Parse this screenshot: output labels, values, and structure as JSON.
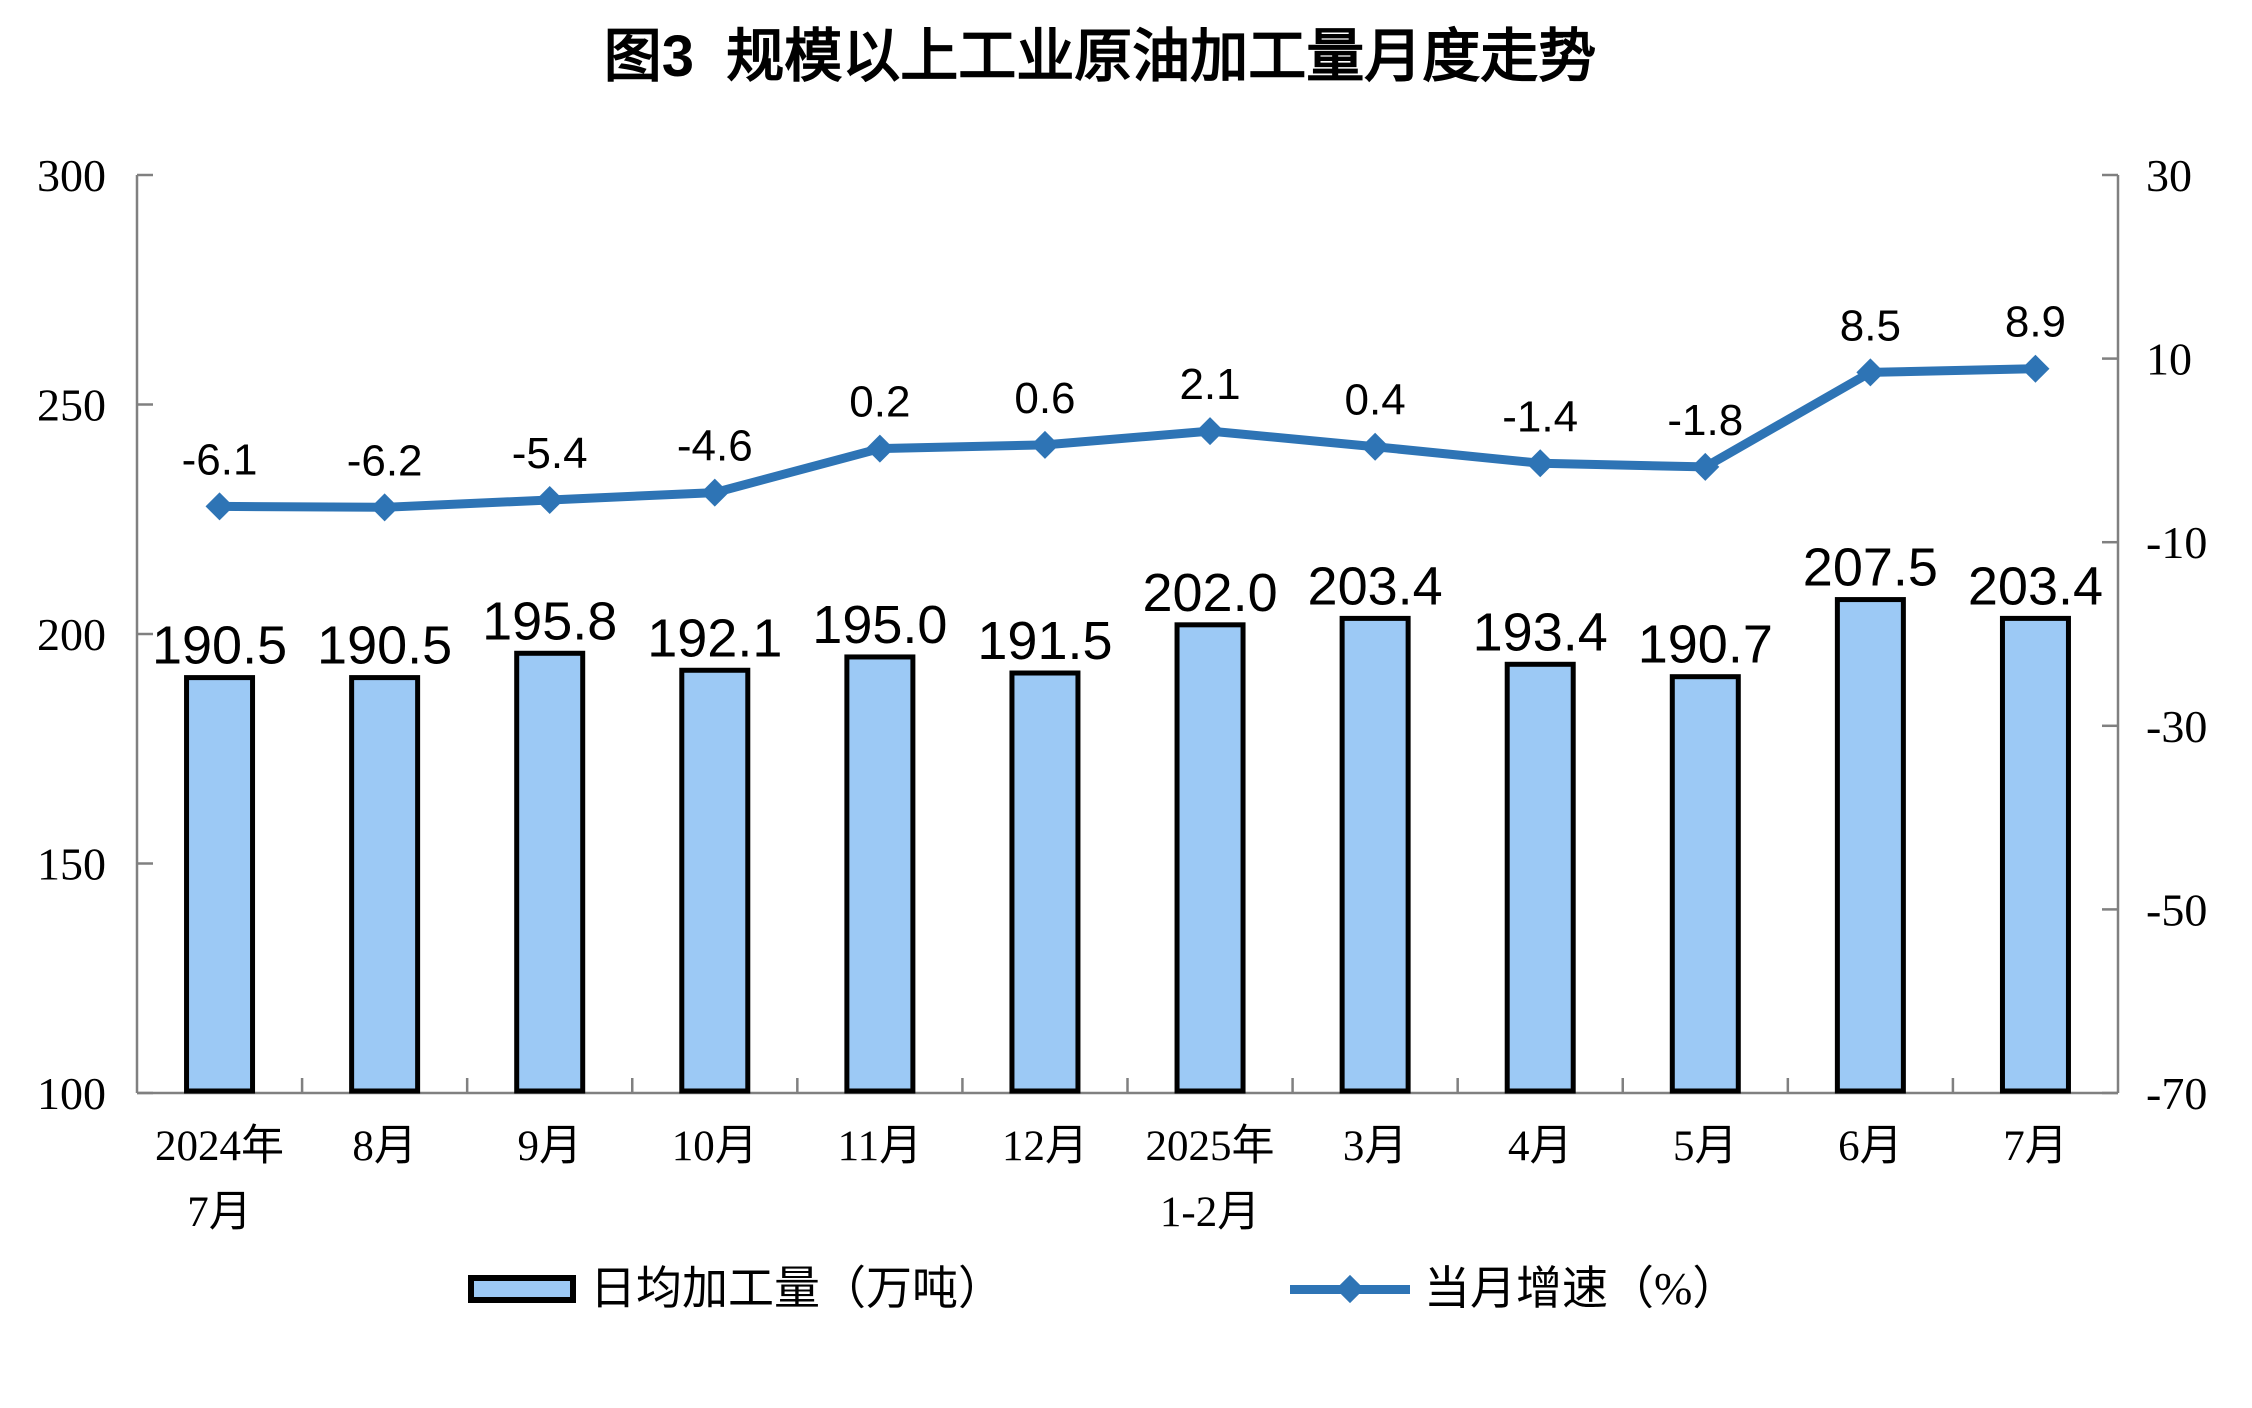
{
  "title": "图3  规模以上工业原油加工量月度走势",
  "chart_data": {
    "type": "bar+line combo",
    "categories": [
      "2024年\n7月",
      "8月",
      "9月",
      "10月",
      "11月",
      "12月",
      "2025年\n1-2月",
      "3月",
      "4月",
      "5月",
      "6月",
      "7月"
    ],
    "series": [
      {
        "name": "日均加工量（万吨）",
        "type": "bar",
        "axis": "left",
        "values": [
          190.5,
          190.5,
          195.8,
          192.1,
          195.0,
          191.5,
          202.0,
          203.4,
          193.4,
          190.7,
          207.5,
          203.4
        ]
      },
      {
        "name": "当月增速（%）",
        "type": "line",
        "axis": "right",
        "values": [
          -6.1,
          -6.2,
          -5.4,
          -4.6,
          0.2,
          0.6,
          2.1,
          0.4,
          -1.4,
          -1.8,
          8.5,
          8.9
        ]
      }
    ],
    "left_axis": {
      "min": 100,
      "max": 300,
      "ticks": [
        300,
        250,
        200,
        150,
        100
      ]
    },
    "right_axis": {
      "min": -70,
      "max": 30,
      "ticks": [
        30,
        10,
        -10,
        -30,
        -50,
        -70
      ]
    },
    "grid": false,
    "legend_position": "bottom",
    "data_labels": true
  },
  "legend": {
    "bar_label": "日均加工量（万吨）",
    "line_label": "当月增速（%）"
  },
  "colors": {
    "bar_fill": "#9CC9F5",
    "bar_border": "#000000",
    "line": "#2E74B5",
    "axis": "#808080",
    "text": "#000000"
  }
}
